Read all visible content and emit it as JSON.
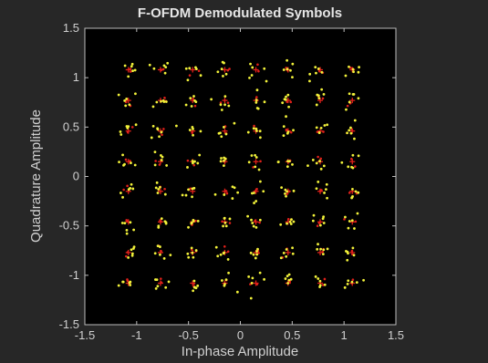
{
  "chart_data": {
    "type": "scatter",
    "title": "F-OFDM Demodulated Symbols",
    "xlabel": "In-phase Amplitude",
    "ylabel": "Quadrature Amplitude",
    "xlim": [
      -1.5,
      1.5
    ],
    "ylim": [
      -1.5,
      1.5
    ],
    "xticks": [
      "-1.5",
      "-1",
      "-0.5",
      "0",
      "0.5",
      "1",
      "1.5"
    ],
    "yticks": [
      "1.5",
      "1",
      "0.5",
      "0",
      "-0.5",
      "-1",
      "-1.5"
    ],
    "xtick_values": [
      -1.5,
      -1,
      -0.5,
      0,
      0.5,
      1,
      1.5
    ],
    "ytick_values": [
      1.5,
      1,
      0.5,
      0,
      -0.5,
      -1,
      -1.5
    ],
    "grid": false,
    "constellation": {
      "name": "64-QAM reference",
      "levels": [
        -1.08,
        -0.77,
        -0.46,
        -0.15,
        0.15,
        0.46,
        0.77,
        1.08
      ],
      "color": "#e0201a"
    },
    "received_symbols": {
      "color": "#f2f23a",
      "noise_std": 0.045,
      "points_per_constellation_point": 6
    },
    "colors": {
      "figure_background": "#272727",
      "axes_background": "#000000",
      "axes_color": "#d0d0d0"
    }
  }
}
